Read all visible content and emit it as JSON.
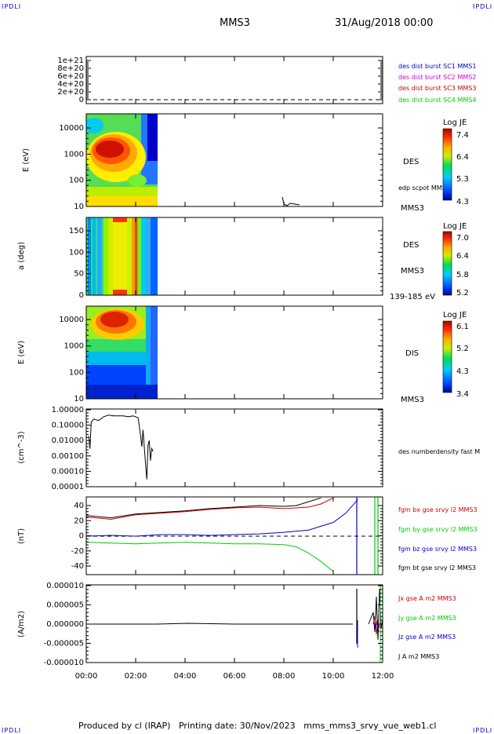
{
  "header": {
    "logo_left": "IPDLI",
    "logo_right": "IPDLI",
    "spacecraft": "MMS3",
    "datetime": "31/Aug/2018 00:00",
    "logo_bottom_left": "IPDLI",
    "logo_bottom_right": "IPDLI"
  },
  "footer": {
    "produced_by": "Produced by cl (IRAP)",
    "printing_date": "Printing date: 30/Nov/2023",
    "product": "mms_mms3_srvy_vue_web1.cl"
  },
  "colors": {
    "mms1": "#0000cc",
    "mms2": "#cc00cc",
    "mms3": "#cc0000",
    "mms4": "#00cc00",
    "bx": "#cc0000",
    "by": "#00cc00",
    "bz": "#0000cc",
    "bt": "#000000"
  },
  "chart_data": [
    {
      "type": "line",
      "panel": "burst",
      "ylabel": "",
      "y_ticks": [
        "1e+21",
        "8e+20",
        "6e+20",
        "4e+20",
        "2e+20",
        "0"
      ],
      "legend": [
        {
          "label": "des dist burst SC1 MMS1",
          "color": "#0000cc"
        },
        {
          "label": "des dist burst SC2 MMS2",
          "color": "#cc00cc"
        },
        {
          "label": "des dist burst SC3 MMS3",
          "color": "#cc0000"
        },
        {
          "label": "des dist burst SC4 MMS4",
          "color": "#00cc00"
        }
      ]
    },
    {
      "type": "heatmap",
      "panel": "des_energy",
      "ylabel": "E (eV)",
      "y_ticks": [
        "10000",
        "1000",
        "100",
        "10"
      ],
      "ylim": [
        10,
        20000
      ],
      "yscale": "log",
      "data_time_range_hours": [
        0,
        2.9
      ],
      "instrument": "DES",
      "extra_label": "edp scpot MMS3",
      "spacecraft": "MMS3",
      "colorbar": {
        "title": "Log JE",
        "ticks": [
          "7.4",
          "6.4",
          "5.3",
          "4.3"
        ]
      }
    },
    {
      "type": "heatmap",
      "panel": "des_pitch",
      "ylabel": "a (deg)",
      "y_ticks": [
        "150",
        "100",
        "50",
        "0"
      ],
      "ylim": [
        0,
        180
      ],
      "data_time_range_hours": [
        0,
        2.9
      ],
      "instrument": "DES",
      "spacecraft": "MMS3",
      "energy_range": "139-185 eV",
      "colorbar": {
        "title": "Log JE",
        "ticks": [
          "7.0",
          "6.4",
          "5.8",
          "5.2"
        ]
      }
    },
    {
      "type": "heatmap",
      "panel": "dis_energy",
      "ylabel": "E (eV)",
      "y_ticks": [
        "10000",
        "1000",
        "100",
        "10"
      ],
      "ylim": [
        10,
        20000
      ],
      "yscale": "log",
      "data_time_range_hours": [
        0,
        2.9
      ],
      "instrument": "DIS",
      "spacecraft": "MMS3",
      "colorbar": {
        "title": "Log JE",
        "ticks": [
          "6.1",
          "5.2",
          "4.3",
          "3.4"
        ]
      }
    },
    {
      "type": "line",
      "panel": "density",
      "ylabel": "(cm^-3)",
      "y_ticks": [
        "1.00000",
        "0.10000",
        "0.01000",
        "0.00100",
        "0.00010",
        "0.00001"
      ],
      "ylim": [
        1e-05,
        1
      ],
      "yscale": "log",
      "legend": [
        {
          "label": "des numberdensity fast M",
          "color": "#000000"
        }
      ],
      "series": [
        {
          "name": "des numberdensity fast M",
          "x": [
            0.1,
            0.15,
            0.2,
            0.3,
            0.5,
            0.7,
            0.9,
            1.1,
            1.3,
            1.5,
            1.7,
            1.9,
            2.1,
            2.2,
            2.25,
            2.3,
            2.4,
            2.45,
            2.5,
            2.55,
            2.6,
            2.65,
            2.7
          ],
          "y": [
            0.02,
            0.003,
            0.15,
            0.25,
            0.2,
            0.35,
            0.45,
            0.4,
            0.4,
            0.4,
            0.35,
            0.4,
            0.3,
            0.02,
            0.004,
            0.05,
            0.0003,
            3e-05,
            0.005,
            0.01,
            0.0005,
            0.003,
            0.002
          ]
        }
      ]
    },
    {
      "type": "line",
      "panel": "b_field",
      "ylabel": "(nT)",
      "y_ticks": [
        "40",
        "20",
        "0",
        "-20",
        "-40"
      ],
      "ylim": [
        -48,
        48
      ],
      "legend": [
        {
          "label": "fgm bx gse srvy l2 MMS3",
          "color": "#cc0000"
        },
        {
          "label": "fgm by gse srvy l2 MMS3",
          "color": "#00cc00"
        },
        {
          "label": "fgm bz gse srvy l2 MMS3",
          "color": "#0000cc"
        },
        {
          "label": "fgm bt gse srvy l2 MMS3",
          "color": "#000000"
        }
      ],
      "series": [
        {
          "name": "fgm bx gse srvy l2 MMS3",
          "x": [
            0,
            1,
            2,
            3,
            4,
            5,
            6,
            7,
            8,
            9,
            9.5,
            10
          ],
          "y": [
            25,
            22,
            28,
            30,
            32,
            35,
            37,
            38,
            36,
            38,
            42,
            50
          ]
        },
        {
          "name": "fgm by gse srvy l2 MMS3",
          "x": [
            0,
            1,
            2,
            3,
            4,
            5,
            6,
            7,
            8,
            8.5,
            9,
            9.5,
            10
          ],
          "y": [
            -8,
            -9,
            -10,
            -9,
            -8,
            -9,
            -10,
            -10,
            -11,
            -14,
            -22,
            -33,
            -46
          ]
        },
        {
          "name": "fgm bz gse srvy l2 MMS3",
          "x": [
            0,
            1,
            2,
            3,
            4,
            5,
            6,
            7,
            8,
            9,
            10,
            10.5,
            11
          ],
          "y": [
            0,
            1,
            0,
            2,
            2,
            1,
            2,
            3,
            5,
            8,
            18,
            30,
            48
          ]
        },
        {
          "name": "fgm bt gse srvy l2 MMS3",
          "x": [
            0,
            1,
            2,
            3,
            4,
            5,
            6,
            7,
            8,
            8.5,
            9,
            9.5
          ],
          "y": [
            27,
            24,
            29,
            31,
            33,
            36,
            38,
            40,
            39,
            40,
            45,
            50
          ]
        }
      ]
    },
    {
      "type": "line",
      "panel": "current",
      "ylabel": "(A/m2)",
      "y_ticks": [
        "0.000010",
        "0.000005",
        "0.000000",
        "-0.000005",
        "-0.000010"
      ],
      "ylim": [
        -1e-05,
        1e-05
      ],
      "legend": [
        {
          "label": "Jx gse A m2 MMS3",
          "color": "#cc0000"
        },
        {
          "label": "Jy gse A m2 MMS3",
          "color": "#00cc00"
        },
        {
          "label": "Jz gse A m2 MMS3",
          "color": "#0000cc"
        },
        {
          "label": "J A m2 MMS3",
          "color": "#000000"
        }
      ]
    }
  ],
  "x_axis": {
    "ticks": [
      "00:00",
      "02:00",
      "04:00",
      "06:00",
      "08:00",
      "10:00",
      "12:00"
    ],
    "xlim_hours": [
      0,
      12
    ]
  }
}
